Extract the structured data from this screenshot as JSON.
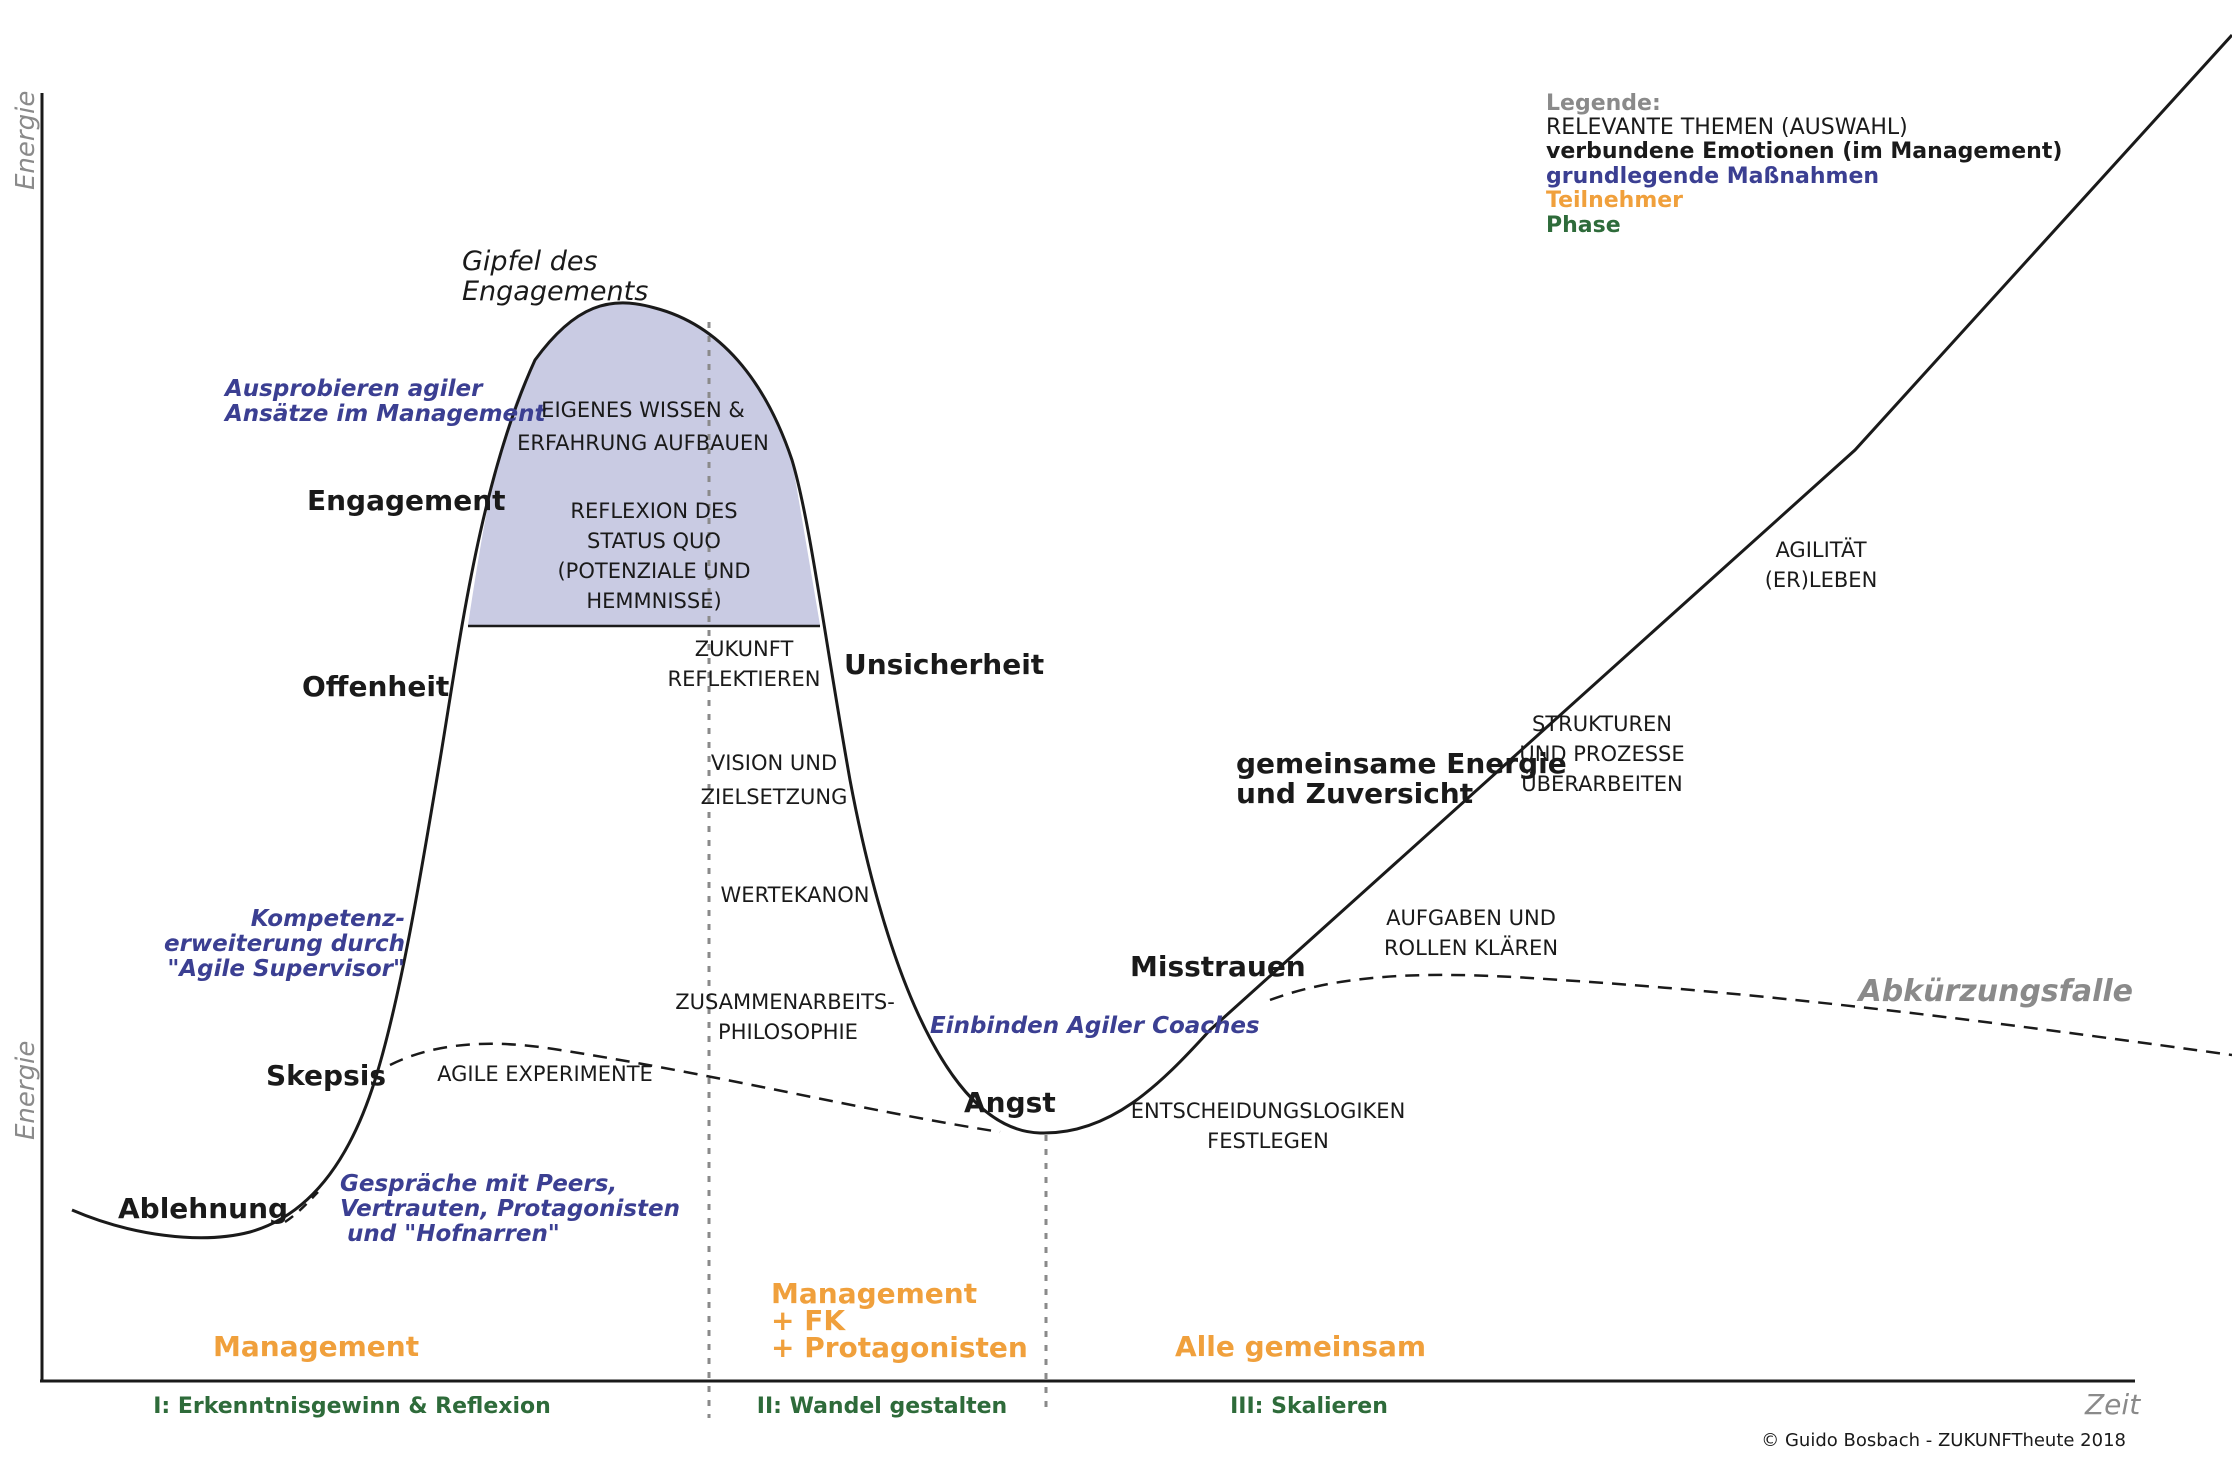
{
  "colors": {
    "themes": "#1a1a1a",
    "emotions": "#1a1a1a",
    "measures": "#3b3f92",
    "participants": "#f0a03c",
    "phase": "#2e6b3a",
    "legend_head": "#8a8a8a",
    "axis_label": "#8a8a8a",
    "peak_fill": "#c9cbe3"
  },
  "axes": {
    "y_label_top": "Energie",
    "y_label_bottom": "Energie",
    "x_label": "Zeit"
  },
  "legend": {
    "title": "Legende:",
    "themes": "RELEVANTE THEMEN (AUSWAHL)",
    "emotions": "verbundene Emotionen (im Management)",
    "measures": "grundlegende Maßnahmen",
    "participants": "Teilnehmer",
    "phase": "Phase"
  },
  "peak_label": {
    "line1": "Gipfel des",
    "line2": "Engagements"
  },
  "emotions": {
    "ablehnung": "Ablehnung",
    "skepsis": "Skepsis",
    "offenheit": "Offenheit",
    "engagement": "Engagement",
    "unsicherheit": "Unsicherheit",
    "angst": "Angst",
    "misstrauen": "Misstrauen",
    "energie_1": "gemeinsame Energie",
    "energie_2": "und Zuversicht"
  },
  "measures": {
    "ausprobieren_1": "Ausprobieren agiler",
    "ausprobieren_2": "Ansätze im Management",
    "kompetenz_1": "Kompetenz-",
    "kompetenz_2": "erweiterung durch",
    "kompetenz_3": "\"Agile Supervisor\"",
    "gespraeche_1": "Gespräche mit Peers,",
    "gespraeche_2": "Vertrauten, Protagonisten",
    "gespraeche_3": "und \"Hofnarren\"",
    "coaches": "Einbinden Agiler Coaches"
  },
  "themes": {
    "wissen_1": "EIGENES WISSEN &",
    "wissen_2": "ERFAHRUNG AUFBAUEN",
    "reflexion_1": "REFLEXION DES",
    "reflexion_2": "STATUS QUO",
    "reflexion_3": "(POTENZIALE UND",
    "reflexion_4": "HEMMNISSE)",
    "zukunft_1": "ZUKUNFT",
    "zukunft_2": "REFLEKTIEREN",
    "vision_1": "VISION UND",
    "vision_2": "ZIELSETZUNG",
    "wertekanon": "WERTEKANON",
    "zusammen_1": "ZUSAMMENARBEITS-",
    "zusammen_2": "PHILOSOPHIE",
    "experimente": "AGILE EXPERIMENTE",
    "entscheidung_1": "ENTSCHEIDUNGSLOGIKEN",
    "entscheidung_2": "FESTLEGEN",
    "aufgaben_1": "AUFGABEN UND",
    "aufgaben_2": "ROLLEN KLÄREN",
    "strukturen_1": "STRUKTUREN",
    "strukturen_2": "UND PROZESSE",
    "strukturen_3": "ÜBERARBEITEN",
    "agilitaet_1": "AGILITÄT",
    "agilitaet_2": "(ER)LEBEN"
  },
  "shortcut_label": "Abkürzungsfalle",
  "participants": {
    "management": "Management",
    "mid_1": "Management",
    "mid_2": "+ FK",
    "mid_3": "+ Protagonisten",
    "all": "Alle gemeinsam"
  },
  "phases": {
    "phase_1": "I: Erkenntnisgewinn & Reflexion",
    "phase_2": "II: Wandel gestalten",
    "phase_3": "III: Skalieren"
  },
  "copyright": "© Guido Bosbach - ZUKUNFTheute 2018"
}
